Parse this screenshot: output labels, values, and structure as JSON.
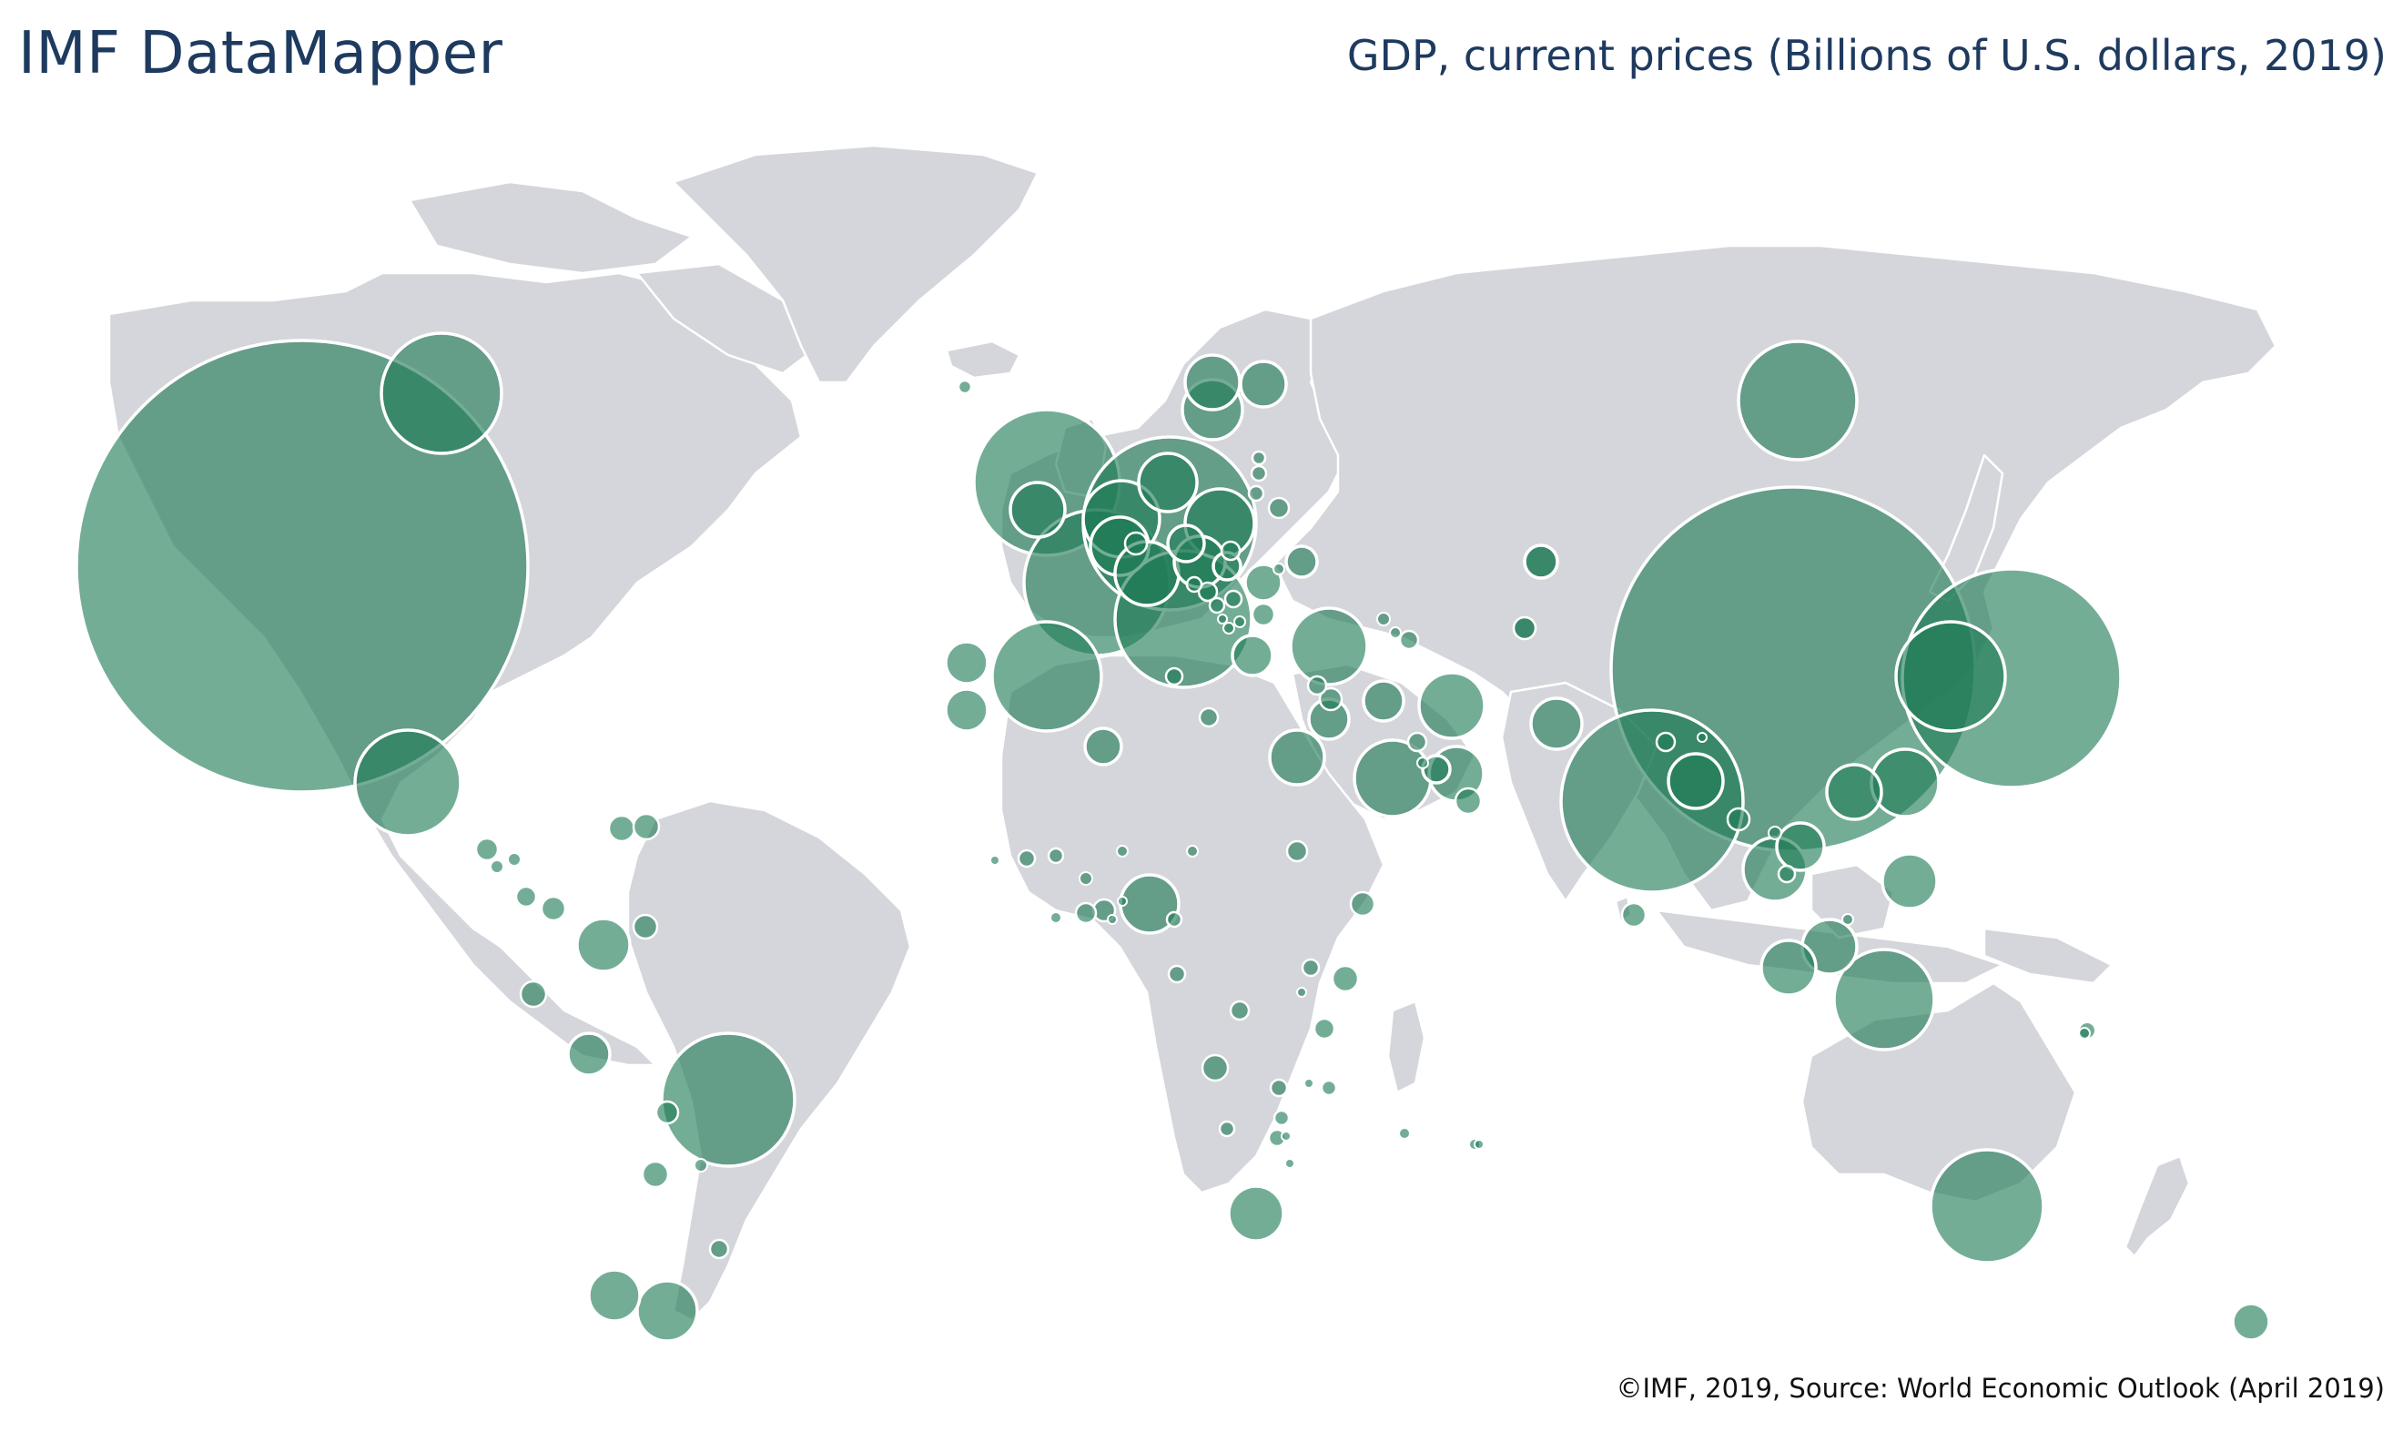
{
  "header": {
    "app_title": "IMF DataMapper",
    "indicator_title": "GDP, current prices (Billions of U.S. dollars, 2019)"
  },
  "footer": {
    "credit": "©IMF, 2019, Source: World Economic Outlook (April 2019)"
  },
  "map": {
    "land_color": "#d5d6db",
    "bubble_color": "#1f7a56",
    "border_color": "#ffffff",
    "map_type": "proportional symbol (bubble) world map"
  }
}
